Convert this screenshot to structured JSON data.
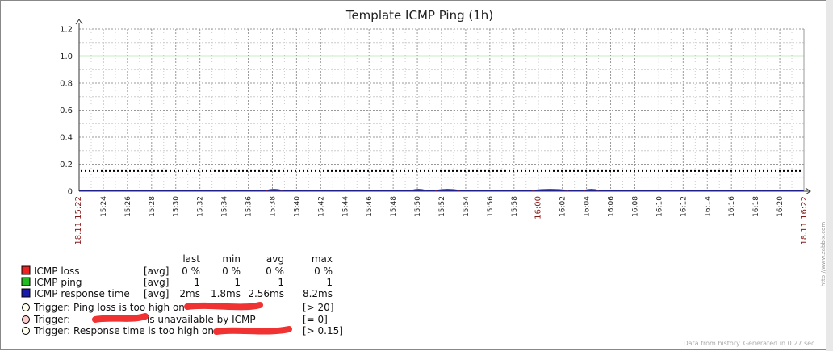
{
  "chart_data": {
    "type": "line",
    "title": "Template ICMP Ping (1h)",
    "ylim": [
      0,
      1.2
    ],
    "y_ticks": [
      "0",
      "0.2",
      "0.4",
      "0.6",
      "0.8",
      "1.0",
      "1.2"
    ],
    "x_range": [
      "15:22",
      "16:22"
    ],
    "x_ticks": [
      "15:24",
      "15:26",
      "15:28",
      "15:30",
      "15:32",
      "15:34",
      "15:36",
      "15:38",
      "15:40",
      "15:42",
      "15:44",
      "15:46",
      "15:48",
      "15:50",
      "15:52",
      "15:54",
      "15:56",
      "15:58",
      "16:00",
      "16:02",
      "16:04",
      "16:06",
      "16:08",
      "16:10",
      "16:12",
      "16:14",
      "16:16",
      "16:18",
      "16:20",
      "16:22"
    ],
    "x_start_label": "18.11 15:22",
    "x_end_label": "18.11 16:22",
    "highlight_tick": "16:00",
    "grid": true,
    "series": [
      {
        "name": "ICMP loss",
        "color": "#ee2222",
        "func": "[avg]",
        "last": "0 %",
        "min": "0 %",
        "avg": "0 %",
        "max": "0 %"
      },
      {
        "name": "ICMP ping",
        "color": "#22bb22",
        "func": "[avg]",
        "last": "1",
        "min": "1",
        "avg": "1",
        "max": "1",
        "values": [
          [
            0,
            1
          ],
          [
            60,
            1
          ]
        ]
      },
      {
        "name": "ICMP response time",
        "color": "#1a1aaa",
        "func": "[avg]",
        "last": "2ms",
        "min": "1.8ms",
        "avg": "2.56ms",
        "max": "8.2ms"
      }
    ],
    "legend_headers": {
      "last": "last",
      "min": "min",
      "avg": "avg",
      "max": "max"
    },
    "triggers": [
      {
        "text": "Trigger: Ping loss is too high on",
        "threshold": "[> 20]",
        "color": "#ffffee"
      },
      {
        "text": "Trigger:",
        "text_after": "is unavailable by ICMP",
        "threshold": "[= 0]",
        "color": "#ffcccc"
      },
      {
        "text": "Trigger: Response time is too high on",
        "threshold": "[> 0.15]",
        "color": "#ffffee",
        "line_value": 0.15
      }
    ],
    "watermark": "http://www.zabbix.com",
    "footer": "Data from history. Generated in 0.27 sec."
  }
}
